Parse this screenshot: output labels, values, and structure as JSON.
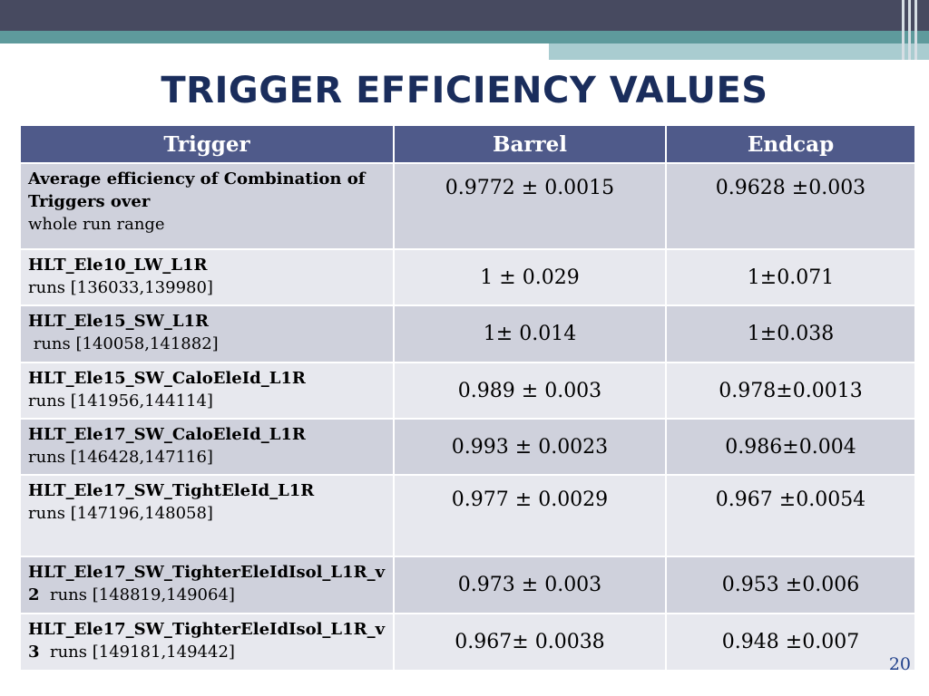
{
  "title": "TRIGGER EFFICIENCY VALUES",
  "table": {
    "headers": [
      "Trigger",
      "Barrel",
      "Endcap"
    ],
    "rows": [
      {
        "name": "Average efficiency of Combination of Triggers  over",
        "desc": "whole run range",
        "barrel": "0.9772 ± 0.0015",
        "endcap": "0.9628 ±0.003"
      },
      {
        "name": "HLT_Ele10_LW_L1R",
        "desc": "runs [136033,139980]",
        "barrel": "1 ± 0.029",
        "endcap": "1±0.071"
      },
      {
        "name": "HLT_Ele15_SW_L1R",
        "desc": " runs [140058,141882]",
        "barrel": "1± 0.014",
        "endcap": "1±0.038"
      },
      {
        "name": "HLT_Ele15_SW_CaloEleId_L1R",
        "desc": "runs [141956,144114]",
        "barrel": "0.989 ± 0.003",
        "endcap": "0.978±0.0013"
      },
      {
        "name": "HLT_Ele17_SW_CaloEleId_L1R",
        "desc": "runs [146428,147116]",
        "barrel": "0.993 ± 0.0023",
        "endcap": "0.986±0.004"
      },
      {
        "name": "HLT_Ele17_SW_TightEleId_L1R",
        "desc": "runs [147196,148058]",
        "barrel": "0.977 ± 0.0029",
        "endcap": "0.967 ±0.0054"
      },
      {
        "name": "HLT_Ele17_SW_TighterEleIdIsol_L1R_v2",
        "desc": "  runs [148819,149064]",
        "barrel": "0.973 ± 0.003",
        "endcap": "0.953 ±0.006"
      },
      {
        "name": "HLT_Ele17_SW_TighterEleIdIsol_L1R_v3",
        "desc": "  runs [149181,149442]",
        "barrel": "0.967± 0.0038",
        "endcap": "0.948 ±0.007"
      }
    ]
  },
  "page_number": "20",
  "colors": {
    "header_bg": "#4f5a8a",
    "title": "#1a2d5c",
    "row_dark": "#cfd1dc",
    "row_light": "#e7e8ee"
  }
}
